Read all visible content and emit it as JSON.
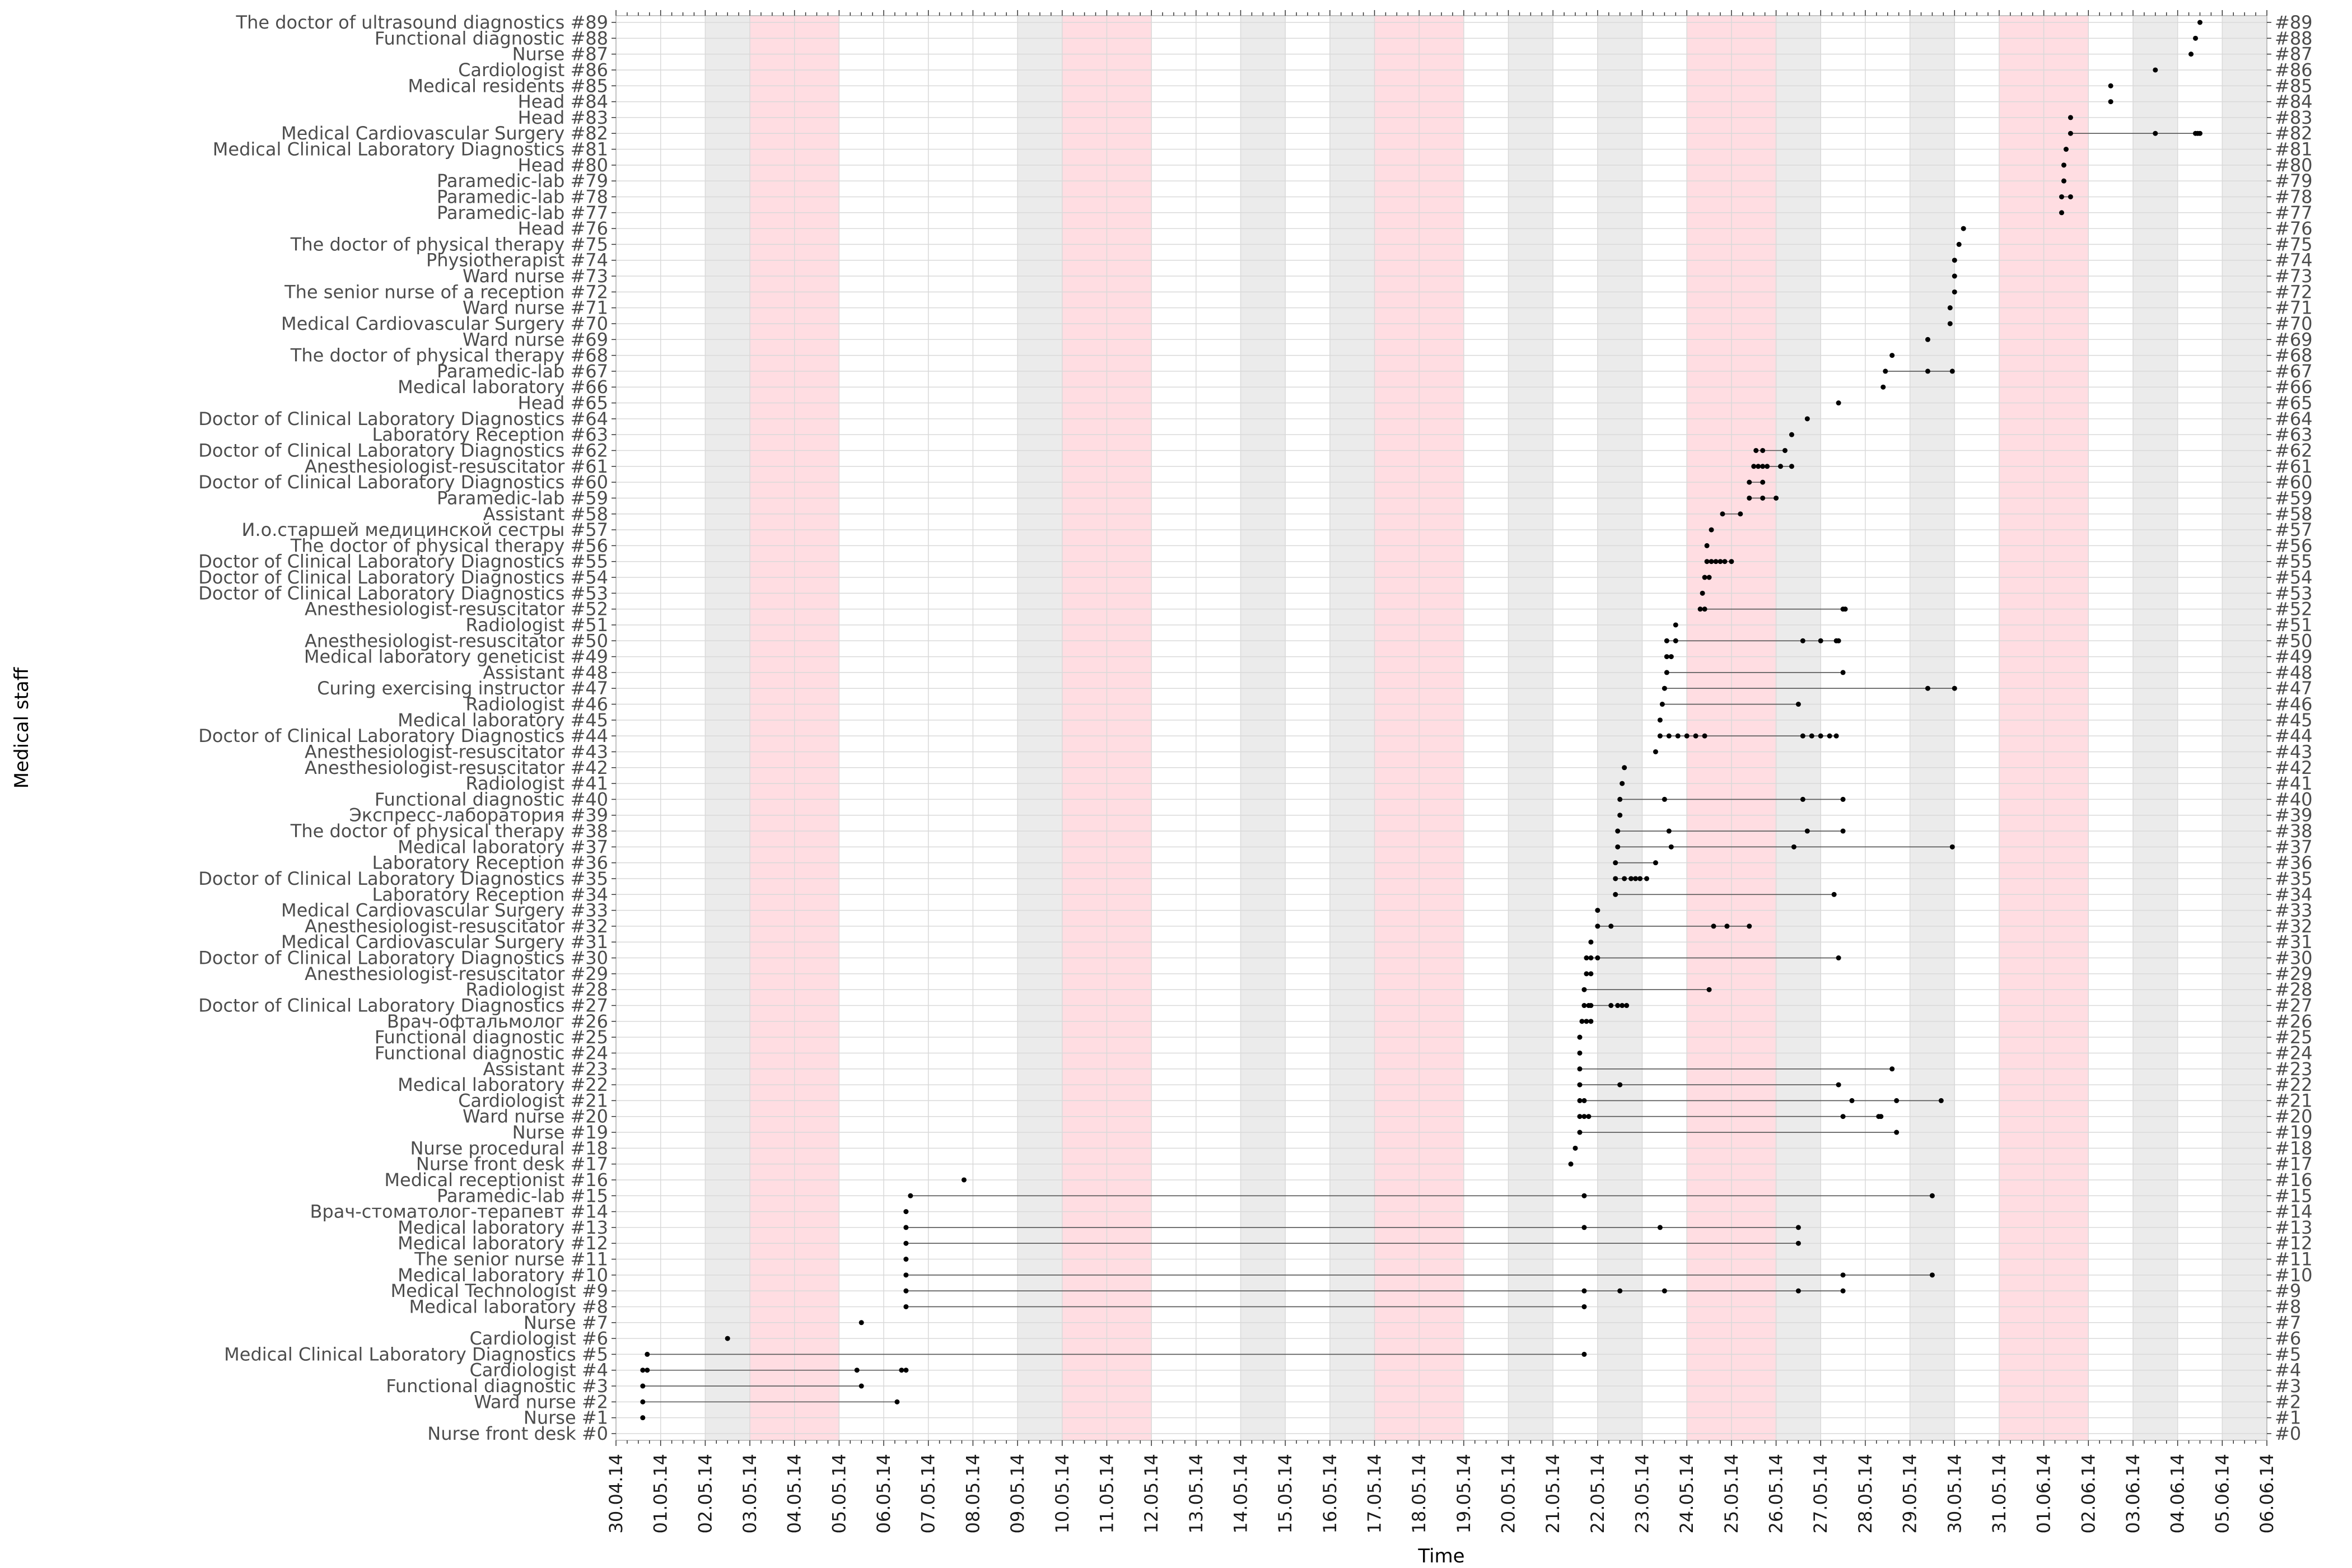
{
  "chart_data": {
    "type": "scatter",
    "xlabel": "Time",
    "ylabel": "Medical staff",
    "x_tick_labels": [
      "30.04.14",
      "01.05.14",
      "02.05.14",
      "03.05.14",
      "04.05.14",
      "05.05.14",
      "06.05.14",
      "07.05.14",
      "08.05.14",
      "09.05.14",
      "10.05.14",
      "11.05.14",
      "12.05.14",
      "13.05.14",
      "14.05.14",
      "15.05.14",
      "16.05.14",
      "17.05.14",
      "18.05.14",
      "19.05.14",
      "20.05.14",
      "21.05.14",
      "22.05.14",
      "23.05.14",
      "24.05.14",
      "25.05.14",
      "26.05.14",
      "27.05.14",
      "28.05.14",
      "29.05.14",
      "30.05.14",
      "31.05.14",
      "01.06.14",
      "02.06.14",
      "03.06.14",
      "04.06.14",
      "05.06.14",
      "06.06.14"
    ],
    "x_range_days": [
      0,
      37
    ],
    "weekend_day_offsets": [
      2,
      9,
      11,
      14,
      16,
      20,
      22,
      26,
      29,
      34,
      36
    ],
    "holiday_ranges": [
      [
        3,
        5
      ],
      [
        10,
        12
      ],
      [
        17,
        19
      ],
      [
        24,
        26
      ],
      [
        31,
        33
      ]
    ],
    "staff": [
      "Nurse front desk #0",
      "Nurse #1",
      "Ward nurse #2",
      "Functional diagnostic #3",
      "Cardiologist #4",
      "Medical Clinical Laboratory Diagnostics #5",
      "Cardiologist #6",
      "Nurse #7",
      "Medical laboratory #8",
      "Medical Technologist #9",
      "Medical laboratory #10",
      "The senior nurse #11",
      "Medical laboratory #12",
      "Medical laboratory #13",
      "Врач-стоматолог-терапевт #14",
      "Paramedic-lab #15",
      "Medical receptionist #16",
      "Nurse front desk #17",
      "Nurse procedural #18",
      "Nurse #19",
      "Ward nurse #20",
      "Cardiologist #21",
      "Medical laboratory #22",
      "Assistant #23",
      "Functional diagnostic #24",
      "Functional diagnostic #25",
      "Врач-офтальмолог #26",
      "Doctor of Clinical Laboratory Diagnostics #27",
      "Radiologist #28",
      "Anesthesiologist-resuscitator #29",
      "Doctor of Clinical Laboratory Diagnostics #30",
      "Medical Cardiovascular Surgery #31",
      "Anesthesiologist-resuscitator #32",
      "Medical Cardiovascular Surgery #33",
      "Laboratory Reception #34",
      "Doctor of Clinical Laboratory Diagnostics #35",
      "Laboratory Reception #36",
      "Medical laboratory #37",
      "The doctor of physical therapy #38",
      "Экспресс-лаборатория #39",
      "Functional diagnostic #40",
      "Radiologist #41",
      "Anesthesiologist-resuscitator #42",
      "Anesthesiologist-resuscitator #43",
      "Doctor of Clinical Laboratory Diagnostics #44",
      "Medical laboratory #45",
      "Radiologist #46",
      "Curing exercising instructor #47",
      "Assistant #48",
      "Medical laboratory geneticist #49",
      "Anesthesiologist-resuscitator #50",
      "Radiologist #51",
      "Anesthesiologist-resuscitator #52",
      "Doctor of Clinical Laboratory Diagnostics #53",
      "Doctor of Clinical Laboratory Diagnostics #54",
      "Doctor of Clinical Laboratory Diagnostics #55",
      "The doctor of physical therapy #56",
      "И.о.старшей медицинской сестры #57",
      "Assistant #58",
      "Paramedic-lab #59",
      "Doctor of Clinical Laboratory Diagnostics #60",
      "Anesthesiologist-resuscitator #61",
      "Doctor of Clinical Laboratory Diagnostics #62",
      "Laboratory Reception #63",
      "Doctor of Clinical Laboratory Diagnostics #64",
      "Head #65",
      "Medical laboratory #66",
      "Paramedic-lab #67",
      "The doctor of physical therapy #68",
      "Ward nurse #69",
      "Medical Cardiovascular Surgery #70",
      "Ward nurse #71",
      "The senior nurse of a reception #72",
      "Ward nurse #73",
      "Physiotherapist #74",
      "The doctor of physical therapy #75",
      "Head #76",
      "Paramedic-lab #77",
      "Paramedic-lab #78",
      "Paramedic-lab #79",
      "Head #80",
      "Medical Clinical Laboratory Diagnostics #81",
      "Medical Cardiovascular Surgery #82",
      "Head #83",
      "Head #84",
      "Medical residents #85",
      "Cardiologist #86",
      "Nurse #87",
      "Functional diagnostic #88",
      "The doctor of ultrasound diagnostics #89"
    ],
    "events": [
      [],
      [
        0.6
      ],
      [
        0.6,
        6.3
      ],
      [
        0.6,
        5.5
      ],
      [
        0.6,
        0.7,
        5.4,
        6.4,
        6.5
      ],
      [
        0.7,
        21.7
      ],
      [
        2.5
      ],
      [
        5.5
      ],
      [
        6.5,
        21.7
      ],
      [
        6.5,
        21.7,
        22.5,
        23.5,
        26.5,
        27.5
      ],
      [
        6.5,
        27.5,
        29.5
      ],
      [
        6.5
      ],
      [
        6.5,
        26.5
      ],
      [
        6.5,
        21.7,
        23.4,
        26.5
      ],
      [
        6.5
      ],
      [
        6.6,
        21.7,
        29.5
      ],
      [
        7.8
      ],
      [
        21.4
      ],
      [
        21.5
      ],
      [
        21.6,
        28.7
      ],
      [
        21.6,
        21.7,
        21.8,
        27.5,
        28.3,
        28.35
      ],
      [
        21.6,
        21.7,
        27.7,
        28.7,
        29.7
      ],
      [
        21.6,
        22.5,
        27.4
      ],
      [
        21.6,
        28.6
      ],
      [
        21.6
      ],
      [
        21.6
      ],
      [
        21.65,
        21.75,
        21.85
      ],
      [
        21.7,
        21.8,
        21.85,
        22.3,
        22.45,
        22.55,
        22.65
      ],
      [
        21.7,
        24.5
      ],
      [
        21.75,
        21.85
      ],
      [
        21.75,
        21.85,
        22.0,
        27.4
      ],
      [
        21.85
      ],
      [
        22.0,
        22.3,
        24.6,
        24.9,
        25.4
      ],
      [
        22.0
      ],
      [
        22.4,
        27.3
      ],
      [
        22.4,
        22.6,
        22.75,
        22.85,
        22.95,
        23.1
      ],
      [
        22.4,
        23.3
      ],
      [
        22.45,
        23.65,
        26.4,
        29.95
      ],
      [
        22.45,
        23.6,
        26.7,
        27.5
      ],
      [
        22.5
      ],
      [
        22.5,
        23.5,
        26.6,
        27.5
      ],
      [
        22.55
      ],
      [
        22.6
      ],
      [
        23.3
      ],
      [
        23.4,
        23.6,
        23.8,
        24.0,
        24.2,
        24.4,
        26.6,
        26.8,
        27.0,
        27.2,
        27.35
      ],
      [
        23.4
      ],
      [
        23.45,
        26.5
      ],
      [
        23.5,
        29.4,
        30.0
      ],
      [
        23.55,
        27.5
      ],
      [
        23.55,
        23.65
      ],
      [
        23.55,
        23.75,
        26.6,
        27.0,
        27.35,
        27.4
      ],
      [
        23.75
      ],
      [
        24.3,
        24.4,
        27.5,
        27.55
      ],
      [
        24.35
      ],
      [
        24.4,
        24.5
      ],
      [
        24.45,
        24.55,
        24.65,
        24.75,
        24.85,
        25.0
      ],
      [
        24.45
      ],
      [
        24.55
      ],
      [
        24.8,
        25.2
      ],
      [
        25.4,
        25.7,
        26.0
      ],
      [
        25.4,
        25.7
      ],
      [
        25.5,
        25.6,
        25.7,
        25.8,
        26.1,
        26.35
      ],
      [
        25.55,
        25.7,
        26.2
      ],
      [
        26.35
      ],
      [
        26.7
      ],
      [
        27.4
      ],
      [
        28.4
      ],
      [
        28.45,
        29.4,
        29.95
      ],
      [
        28.6
      ],
      [
        29.4
      ],
      [
        29.9
      ],
      [
        29.9
      ],
      [
        30.0
      ],
      [
        30.0
      ],
      [
        30.0
      ],
      [
        30.1
      ],
      [
        30.2
      ],
      [
        32.4
      ],
      [
        32.4,
        32.6
      ],
      [
        32.45
      ],
      [
        32.45
      ],
      [
        32.5
      ],
      [
        32.6,
        34.5,
        35.4,
        35.45,
        35.5
      ],
      [
        32.6
      ],
      [
        33.5
      ],
      [
        33.5
      ],
      [
        34.5
      ],
      [
        35.3
      ],
      [
        35.4
      ],
      [
        35.5
      ]
    ]
  }
}
